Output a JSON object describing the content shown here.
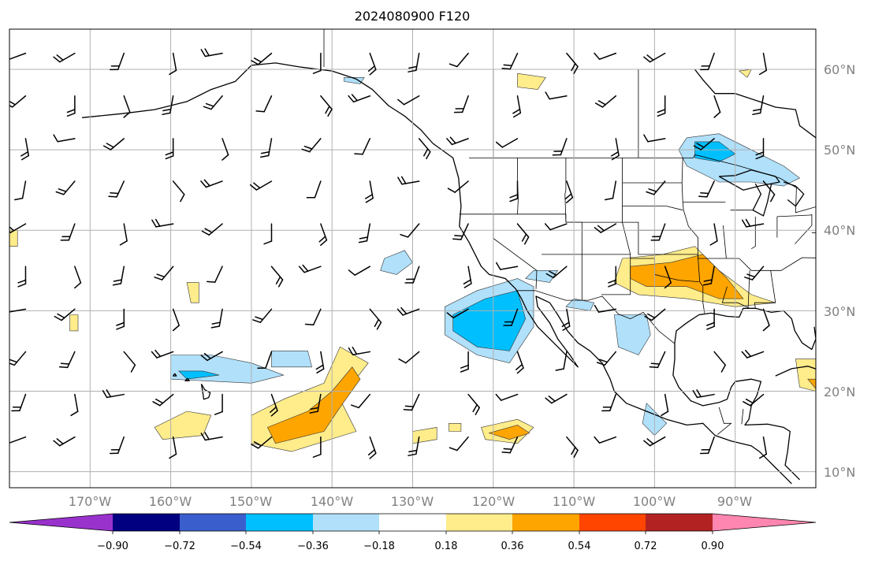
{
  "title": "2024080900 F120",
  "lat_labels": [
    "60°N",
    "50°N",
    "40°N",
    "30°N",
    "20°N",
    "10°N"
  ],
  "lon_labels": [
    "170°W",
    "160°W",
    "150°W",
    "140°W",
    "130°W",
    "120°W",
    "110°W",
    "100°W",
    "90°W"
  ],
  "colorbar": {
    "levels": [
      "−0.90",
      "−0.72",
      "−0.54",
      "−0.36",
      "−0.18",
      "0.18",
      "0.36",
      "0.54",
      "0.72",
      "0.90"
    ],
    "colors": [
      "#9932CC",
      "#000080",
      "#3A5FCD",
      "#00BFFF",
      "#B0E0FA",
      "#FFFFFF",
      "#FFEC8B",
      "#FFA500",
      "#FF4500",
      "#B22222",
      "#FF86B0"
    ]
  },
  "chart_data": {
    "type": "map",
    "projection": "PlateCarree",
    "lon_range": [
      -180,
      -80
    ],
    "lat_range": [
      8,
      65
    ],
    "title": "2024080900 F120",
    "fill_levels": [
      -0.9,
      -0.72,
      -0.54,
      -0.36,
      -0.18,
      0.18,
      0.36,
      0.54,
      0.72,
      0.9
    ],
    "anomaly_regions": [
      {
        "level": "-0.18",
        "color": "#B0E0FA",
        "pts": [
          [
            -96,
            51.5
          ],
          [
            -92,
            52
          ],
          [
            -88,
            50
          ],
          [
            -84,
            48
          ],
          [
            -82,
            46.5
          ],
          [
            -84,
            45.5
          ],
          [
            -88,
            46
          ],
          [
            -92,
            46
          ],
          [
            -96,
            48
          ],
          [
            -97,
            50
          ]
        ]
      },
      {
        "level": "-0.36",
        "color": "#00BFFF",
        "pts": [
          [
            -95,
            51
          ],
          [
            -92,
            51
          ],
          [
            -90,
            49.5
          ],
          [
            -92,
            48.5
          ],
          [
            -95,
            49
          ]
        ]
      },
      {
        "level": "0.18",
        "color": "#FFEC8B",
        "pts": [
          [
            -104,
            36.5
          ],
          [
            -99,
            37
          ],
          [
            -95,
            38
          ],
          [
            -92,
            35
          ],
          [
            -88,
            32
          ],
          [
            -85,
            31
          ],
          [
            -90,
            30.5
          ],
          [
            -96,
            31.5
          ],
          [
            -102,
            32
          ],
          [
            -105,
            33.5
          ]
        ]
      },
      {
        "level": "0.36",
        "color": "#FFA500",
        "pts": [
          [
            -103,
            35.5
          ],
          [
            -98,
            36
          ],
          [
            -94,
            37
          ],
          [
            -91,
            34
          ],
          [
            -89,
            31.5
          ],
          [
            -92,
            31.5
          ],
          [
            -96,
            33
          ],
          [
            -101,
            33
          ],
          [
            -103,
            34
          ]
        ]
      },
      {
        "level": "-0.18",
        "color": "#B0E0FA",
        "pts": [
          [
            -126,
            30.5
          ],
          [
            -122,
            32.5
          ],
          [
            -117,
            34
          ],
          [
            -115,
            33
          ],
          [
            -115,
            28
          ],
          [
            -118,
            23.5
          ],
          [
            -122,
            24.5
          ],
          [
            -126,
            27
          ]
        ]
      },
      {
        "level": "-0.36",
        "color": "#00BFFF",
        "pts": [
          [
            -125,
            29.5
          ],
          [
            -121,
            31.5
          ],
          [
            -117,
            32.5
          ],
          [
            -116,
            29
          ],
          [
            -118,
            25
          ],
          [
            -122,
            25.5
          ],
          [
            -125,
            27.5
          ]
        ]
      },
      {
        "level": "-0.18",
        "color": "#B0E0FA",
        "pts": [
          [
            -133.5,
            36.5
          ],
          [
            -131,
            37.5
          ],
          [
            -130,
            36
          ],
          [
            -132,
            34.5
          ],
          [
            -134,
            35
          ]
        ]
      },
      {
        "level": "-0.18",
        "color": "#B0E0FA",
        "pts": [
          [
            -115,
            35
          ],
          [
            -112,
            35
          ],
          [
            -113,
            33.5
          ],
          [
            -116,
            34
          ]
        ]
      },
      {
        "level": "-0.18",
        "color": "#B0E0FA",
        "pts": [
          [
            -110,
            31.5
          ],
          [
            -107.5,
            31
          ],
          [
            -108,
            30
          ],
          [
            -111,
            30.5
          ]
        ]
      },
      {
        "level": "-0.18",
        "color": "#B0E0FA",
        "pts": [
          [
            -105,
            29.5
          ],
          [
            -101,
            29.5
          ],
          [
            -100.5,
            27
          ],
          [
            -102,
            24.5
          ],
          [
            -104.5,
            25.5
          ]
        ]
      },
      {
        "level": "-0.18",
        "color": "#B0E0FA",
        "pts": [
          [
            -101,
            18.5
          ],
          [
            -98.5,
            16
          ],
          [
            -100,
            14.5
          ],
          [
            -101.5,
            16
          ]
        ]
      },
      {
        "level": "-0.18",
        "color": "#B0E0FA",
        "pts": [
          [
            -147.5,
            25
          ],
          [
            -143,
            25
          ],
          [
            -142.5,
            23
          ],
          [
            -147.5,
            23
          ]
        ]
      },
      {
        "level": "-0.18",
        "color": "#B0E0FA",
        "pts": [
          [
            -160,
            24.5
          ],
          [
            -155,
            24.5
          ],
          [
            -150,
            23.5
          ],
          [
            -146,
            22
          ],
          [
            -150,
            21
          ],
          [
            -160,
            21.5
          ]
        ]
      },
      {
        "level": "-0.36",
        "color": "#00BFFF",
        "pts": [
          [
            -159,
            22.5
          ],
          [
            -156,
            22.5
          ],
          [
            -154,
            22
          ],
          [
            -158,
            21.5
          ]
        ]
      },
      {
        "level": "0.18",
        "color": "#FFEC8B",
        "pts": [
          [
            -150,
            17
          ],
          [
            -146,
            19
          ],
          [
            -141,
            21
          ],
          [
            -139,
            25.5
          ],
          [
            -135.5,
            23.5
          ],
          [
            -139,
            19
          ],
          [
            -137,
            15
          ],
          [
            -145,
            12.5
          ],
          [
            -150,
            13.5
          ]
        ]
      },
      {
        "level": "0.36",
        "color": "#FFA500",
        "pts": [
          [
            -148,
            15.5
          ],
          [
            -143,
            17.5
          ],
          [
            -140,
            20
          ],
          [
            -137.5,
            23
          ],
          [
            -136.5,
            21.5
          ],
          [
            -139,
            18
          ],
          [
            -141,
            15
          ],
          [
            -147,
            13.5
          ]
        ]
      },
      {
        "level": "0.18",
        "color": "#FFEC8B",
        "pts": [
          [
            -162,
            15.5
          ],
          [
            -158,
            17.5
          ],
          [
            -155,
            17
          ],
          [
            -156,
            14.5
          ],
          [
            -161,
            14
          ]
        ]
      },
      {
        "level": "0.18",
        "color": "#FFEC8B",
        "pts": [
          [
            -121.5,
            15.5
          ],
          [
            -117,
            16.5
          ],
          [
            -115,
            15.5
          ],
          [
            -117,
            13.5
          ],
          [
            -121,
            14
          ]
        ]
      },
      {
        "level": "0.36",
        "color": "#FFA500",
        "pts": [
          [
            -120.5,
            14.8
          ],
          [
            -117,
            15.8
          ],
          [
            -115.5,
            14.8
          ],
          [
            -118,
            14
          ]
        ]
      },
      {
        "level": "0.18",
        "color": "#FFEC8B",
        "pts": [
          [
            -130,
            15
          ],
          [
            -127,
            15.5
          ],
          [
            -127,
            14
          ],
          [
            -130,
            13.5
          ]
        ]
      },
      {
        "level": "0.18",
        "color": "#FFEC8B",
        "pts": [
          [
            -125.5,
            16
          ],
          [
            -124,
            16
          ],
          [
            -124,
            15
          ],
          [
            -125.5,
            15
          ]
        ]
      },
      {
        "level": "0.18",
        "color": "#FFEC8B",
        "pts": [
          [
            -158,
            33.5
          ],
          [
            -156.5,
            33.5
          ],
          [
            -156.5,
            31
          ],
          [
            -157.5,
            31
          ]
        ]
      },
      {
        "level": "0.18",
        "color": "#FFEC8B",
        "pts": [
          [
            -172.5,
            29.5
          ],
          [
            -171.5,
            29.5
          ],
          [
            -171.5,
            27.5
          ],
          [
            -172.5,
            27.5
          ]
        ]
      },
      {
        "level": "0.18",
        "color": "#FFEC8B",
        "pts": [
          [
            -180,
            40
          ],
          [
            -179,
            40
          ],
          [
            -179,
            38
          ],
          [
            -180,
            38
          ]
        ]
      },
      {
        "level": "0.18",
        "color": "#FFEC8B",
        "pts": [
          [
            -117,
            59.5
          ],
          [
            -113.5,
            59
          ],
          [
            -114.5,
            57.5
          ],
          [
            -117,
            57.8
          ]
        ]
      },
      {
        "level": "0.18",
        "color": "#FFEC8B",
        "pts": [
          [
            -82.5,
            24
          ],
          [
            -80,
            24
          ],
          [
            -80,
            20
          ],
          [
            -82,
            20.5
          ]
        ]
      },
      {
        "level": "0.36",
        "color": "#FFA500",
        "pts": [
          [
            -81,
            21.5
          ],
          [
            -80,
            21.5
          ],
          [
            -80,
            20.3
          ]
        ]
      },
      {
        "level": "0.18",
        "color": "#FFEC8B",
        "pts": [
          [
            -89.5,
            59.8
          ],
          [
            -88,
            60
          ],
          [
            -88.5,
            59
          ]
        ]
      },
      {
        "level": "-0.18",
        "color": "#B0E0FA",
        "pts": [
          [
            -138.5,
            59
          ],
          [
            -136,
            59
          ],
          [
            -136.5,
            58.2
          ],
          [
            -138.5,
            58.5
          ]
        ]
      }
    ]
  }
}
